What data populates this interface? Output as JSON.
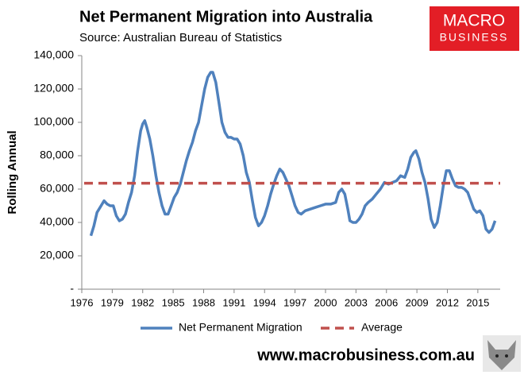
{
  "chart_data": {
    "type": "line",
    "title": "Net Permanent Migration into Australia",
    "subtitle": "Source: Australian Bureau of Statistics",
    "y_label": "Rolling Annual",
    "xlim": [
      1976,
      2017.2
    ],
    "xticks": [
      1976,
      1979,
      1982,
      1985,
      1988,
      1991,
      1994,
      1997,
      2000,
      2003,
      2006,
      2009,
      2012,
      2015
    ],
    "ylim": [
      0,
      140000
    ],
    "yticks": [
      {
        "value": 0,
        "label": "-"
      },
      {
        "value": 20000,
        "label": "20,000"
      },
      {
        "value": 40000,
        "label": "40,000"
      },
      {
        "value": 60000,
        "label": "60,000"
      },
      {
        "value": 80000,
        "label": "80,000"
      },
      {
        "value": 100000,
        "label": "100,000"
      },
      {
        "value": 120000,
        "label": "120,000"
      },
      {
        "value": 140000,
        "label": "140,000"
      }
    ],
    "grid": false,
    "series": [
      {
        "name": "Net Permanent Migration",
        "color": "#4f81bd",
        "x": [
          1976.9,
          1977.2,
          1977.5,
          1977.9,
          1978.2,
          1978.5,
          1978.8,
          1979.1,
          1979.4,
          1979.7,
          1980.0,
          1980.3,
          1980.6,
          1980.9,
          1981.2,
          1981.5,
          1981.8,
          1982.0,
          1982.2,
          1982.4,
          1982.7,
          1983.0,
          1983.3,
          1983.6,
          1983.9,
          1984.2,
          1984.5,
          1984.8,
          1985.1,
          1985.4,
          1985.7,
          1986.0,
          1986.3,
          1986.6,
          1986.9,
          1987.2,
          1987.5,
          1987.8,
          1988.1,
          1988.4,
          1988.7,
          1988.9,
          1989.2,
          1989.5,
          1989.8,
          1990.1,
          1990.4,
          1990.7,
          1991.0,
          1991.3,
          1991.6,
          1991.9,
          1992.2,
          1992.5,
          1992.8,
          1993.1,
          1993.4,
          1993.7,
          1994.0,
          1994.3,
          1994.6,
          1994.9,
          1995.2,
          1995.5,
          1995.8,
          1996.1,
          1996.4,
          1996.7,
          1997.0,
          1997.3,
          1997.6,
          1998.0,
          1998.5,
          1999.0,
          1999.5,
          2000.0,
          2000.5,
          2001.0,
          2001.3,
          2001.6,
          2001.9,
          2002.2,
          2002.4,
          2002.7,
          2003.0,
          2003.3,
          2003.6,
          2003.9,
          2004.2,
          2004.6,
          2005.0,
          2005.4,
          2005.8,
          2006.2,
          2006.6,
          2007.0,
          2007.4,
          2007.8,
          2008.1,
          2008.4,
          2008.7,
          2008.9,
          2009.2,
          2009.5,
          2009.8,
          2010.1,
          2010.4,
          2010.7,
          2011.0,
          2011.3,
          2011.6,
          2011.9,
          2012.2,
          2012.5,
          2012.8,
          2013.1,
          2013.4,
          2013.7,
          2014.0,
          2014.3,
          2014.6,
          2014.9,
          2015.2,
          2015.5,
          2015.8,
          2016.1,
          2016.4,
          2016.7
        ],
        "values": [
          32000,
          38000,
          46000,
          50000,
          53000,
          51000,
          50000,
          50000,
          44000,
          41000,
          42000,
          45000,
          52000,
          58000,
          68000,
          83000,
          95000,
          99000,
          101000,
          97000,
          90000,
          80000,
          68000,
          58000,
          50000,
          45000,
          45000,
          50000,
          55000,
          58000,
          63000,
          70000,
          77000,
          83000,
          88000,
          95000,
          100000,
          110000,
          120000,
          127000,
          130000,
          130000,
          124000,
          112000,
          100000,
          94000,
          91000,
          91000,
          90000,
          90000,
          87000,
          80000,
          70000,
          64000,
          53000,
          43000,
          38000,
          40000,
          44000,
          50000,
          57000,
          63000,
          68000,
          72000,
          70000,
          66000,
          62000,
          56000,
          50000,
          46000,
          45000,
          47000,
          48000,
          49000,
          50000,
          51000,
          51000,
          52000,
          58000,
          60000,
          57000,
          48000,
          41000,
          40000,
          40000,
          42000,
          45000,
          50000,
          52000,
          54000,
          57000,
          60000,
          64000,
          63000,
          64000,
          65000,
          68000,
          67000,
          72000,
          79000,
          82000,
          83000,
          78000,
          70000,
          64000,
          54000,
          42000,
          37000,
          40000,
          50000,
          62000,
          71000,
          71000,
          66000,
          62000,
          61000,
          61000,
          60000,
          58000,
          53000,
          48000,
          46000,
          47000,
          44000,
          36000,
          34000,
          36000,
          41000
        ]
      }
    ],
    "average": {
      "name": "Average",
      "color": "#c0504d",
      "value": 63500
    }
  },
  "logo": {
    "line1": "MACRO",
    "line2": "BUSINESS"
  },
  "footer": "www.macrobusiness.com.au"
}
